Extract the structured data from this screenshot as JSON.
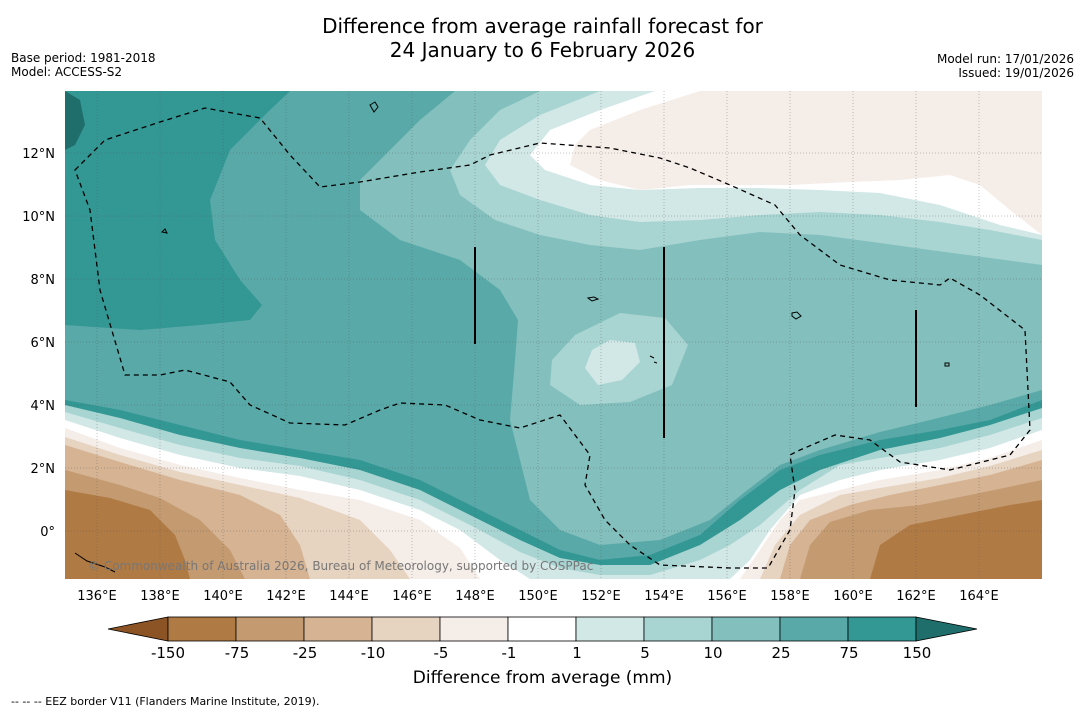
{
  "title_line1": "Difference from average rainfall forecast for",
  "title_line2": "24 January to 6 February 2026",
  "meta_left": {
    "base_period": "Base period: 1981-2018",
    "model": "Model: ACCESS-S2"
  },
  "meta_right": {
    "model_run": "Model run: 17/01/2026",
    "issued": "Issued: 19/01/2026"
  },
  "copyright": "© Commonwealth of Australia 2026, Bureau of Meteorology, supported by COSPPac",
  "lon_labels": [
    "136°E",
    "138°E",
    "140°E",
    "142°E",
    "144°E",
    "146°E",
    "148°E",
    "150°E",
    "152°E",
    "154°E",
    "156°E",
    "158°E",
    "160°E",
    "162°E",
    "164°E"
  ],
  "lat_labels": [
    "12°N",
    "10°N",
    "8°N",
    "6°N",
    "4°N",
    "2°N",
    "0°"
  ],
  "colorbar": {
    "title": "Difference from average (mm)",
    "tick_labels": [
      "-150",
      "-75",
      "-25",
      "-10",
      "-5",
      "-1",
      "1",
      "5",
      "10",
      "25",
      "75",
      "150"
    ],
    "colors": [
      "#8c5424",
      "#b07a44",
      "#c49a70",
      "#d5b393",
      "#e6d3c0",
      "#f5ede8",
      "#ffffff",
      "#d2e8e6",
      "#a8d4d2",
      "#82bfbd",
      "#58a9a7",
      "#339794",
      "#1f6e6b"
    ]
  },
  "footer": "--  --  -- EEZ border V11 (Flanders Marine Institute, 2019)."
}
